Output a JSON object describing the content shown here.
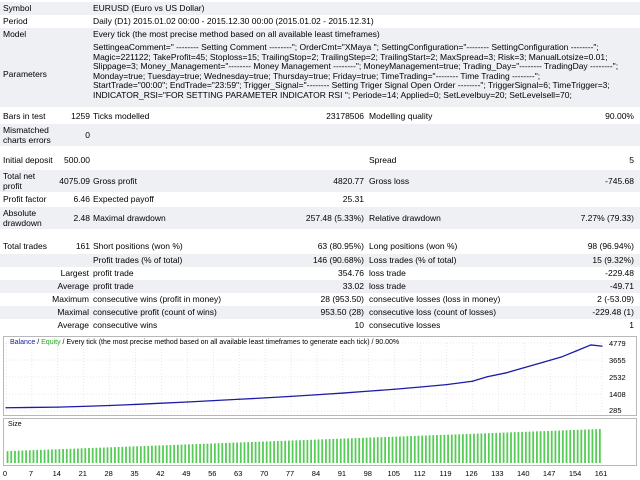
{
  "report": {
    "symbol": {
      "label": "Symbol",
      "value": "EURUSD (Euro vs US Dollar)"
    },
    "period": {
      "label": "Period",
      "value": "Daily (D1) 2015.01.02 00:00 - 2015.12.30 00:00 (2015.01.02 - 2015.12.31)"
    },
    "model": {
      "label": "Model",
      "value": "Every tick (the most precise method based on all available least timeframes)"
    },
    "parameters": {
      "label": "Parameters",
      "lines": [
        "SettingeaComment=\" -------- Setting Comment --------\"; OrderCmt=\"XMaya \"; SettingConfiguration=\"-------- SettingConfiguration --------\";",
        "Magic=221122; TakeProfit=45; Stoploss=15; TrailingStop=2; TrailingStep=2; TrailingStart=2; MaxSpread=3; Risk=3; ManualLotsize=0.01;",
        "Slippage=3; Money_Management=\"-------- Money Management --------\"; MoneyManagement=true; Trading_Day=\"-------- TradingDay --------\";",
        "Monday=true; Tuesday=true; Wednesday=true; Thursday=true; Friday=true; TimeTrading=\"-------- Time Trading --------\";",
        "StartTrade=\"00:00\"; EndTrade=\"23:59\"; Trigger_Signal=\"-------- Setting Triger Signal Open Order --------\"; TriggerSignal=6; TimeTrigger=3;",
        "INDICATOR_RSI=\"FOR SETTING PARAMETER INDICATOR RSI \"; Periode=14; Applied=0; SetLevelbuy=20; SetLevelsell=70;"
      ]
    },
    "bars_in_test": {
      "label": "Bars in test",
      "value": "1259"
    },
    "ticks_modelled": {
      "label": "Ticks modelled",
      "value": "23178506"
    },
    "modelling_quality": {
      "label": "Modelling quality",
      "value": "90.00%"
    },
    "mismatched": {
      "label_1": "Mismatched",
      "label_2": "charts errors",
      "value": "0"
    },
    "initial_deposit": {
      "label": "Initial deposit",
      "value": "500.00"
    },
    "spread": {
      "label": "Spread",
      "value": "5"
    },
    "total_net_profit": {
      "label_1": "Total net",
      "label_2": "profit",
      "value": "4075.09"
    },
    "gross_profit": {
      "label": "Gross profit",
      "value": "4820.77"
    },
    "gross_loss": {
      "label": "Gross loss",
      "value": "-745.68"
    },
    "profit_factor": {
      "label": "Profit factor",
      "value": "6.46"
    },
    "expected_payoff": {
      "label": "Expected payoff",
      "value": "25.31"
    },
    "absolute_drawdown": {
      "label_1": "Absolute",
      "label_2": "drawdown",
      "value": "2.48"
    },
    "maximal_drawdown": {
      "label": "Maximal drawdown",
      "value": "257.48 (5.33%)"
    },
    "relative_drawdown": {
      "label": "Relative drawdown",
      "value": "7.27% (79.33)"
    },
    "total_trades": {
      "label": "Total trades",
      "value": "161"
    },
    "short_positions": {
      "label": "Short positions (won %)",
      "value": "63 (80.95%)"
    },
    "long_positions": {
      "label": "Long positions (won %)",
      "value": "98 (96.94%)"
    },
    "profit_trades": {
      "label": "Profit trades (% of total)",
      "value": "146 (90.68%)"
    },
    "loss_trades": {
      "label": "Loss trades (% of total)",
      "value": "15 (9.32%)"
    },
    "largest": {
      "label": "Largest",
      "profit_label": "profit trade",
      "profit_value": "354.76",
      "loss_label": "loss trade",
      "loss_value": "-229.48"
    },
    "average": {
      "label": "Average",
      "profit_label": "profit trade",
      "profit_value": "33.02",
      "loss_label": "loss trade",
      "loss_value": "-49.71"
    },
    "maximum": {
      "label": "Maximum",
      "wins_label": "consecutive wins (profit in money)",
      "wins_value": "28 (953.50)",
      "losses_label": "consecutive losses (loss in money)",
      "losses_value": "2 (-53.09)"
    },
    "maximal": {
      "label": "Maximal",
      "wins_label": "consecutive profit (count of wins)",
      "wins_value": "953.50 (28)",
      "losses_label": "consecutive loss (count of losses)",
      "losses_value": "-229.48 (1)"
    },
    "average_consecutive": {
      "label": "Average",
      "wins_label": "consecutive wins",
      "wins_value": "10",
      "losses_label": "consecutive losses",
      "losses_value": "1"
    }
  },
  "chart_data": {
    "type": "line",
    "legend": {
      "balance": "Balance",
      "separator": " / ",
      "equity": "Equity",
      "rest": " / Every tick (the most precise method based on all available least timeframes to generate each tick) / 90.00%"
    },
    "y_ticks": [
      "4779",
      "3655",
      "2532",
      "1408",
      "285"
    ],
    "ylim": [
      285,
      4779
    ],
    "x_ticks": [
      "0",
      "7",
      "14",
      "21",
      "28",
      "35",
      "42",
      "49",
      "56",
      "63",
      "70",
      "77",
      "84",
      "91",
      "98",
      "105",
      "112",
      "119",
      "126",
      "133",
      "140",
      "147",
      "154",
      "161"
    ],
    "xlim": [
      0,
      161
    ],
    "colors": {
      "balance": "#1c1ca8",
      "equity": "#22aa22",
      "size": "#55cc55",
      "grid": "#d0d0d0"
    },
    "series": [
      {
        "name": "Balance",
        "x": [
          0,
          7,
          14,
          21,
          28,
          35,
          42,
          49,
          56,
          63,
          70,
          77,
          84,
          91,
          98,
          105,
          112,
          119,
          126,
          130,
          135,
          140,
          145,
          150,
          154,
          158,
          161
        ],
        "values": [
          500,
          520,
          540,
          590,
          650,
          720,
          800,
          880,
          970,
          1060,
          1150,
          1250,
          1360,
          1470,
          1600,
          1720,
          1870,
          2030,
          2250,
          2550,
          2800,
          3150,
          3500,
          3850,
          4250,
          4650,
          4575
        ]
      }
    ],
    "size_label": "Size",
    "size_bars": {
      "count": 161,
      "start_height": 0.35,
      "end_height": 1.0
    }
  }
}
